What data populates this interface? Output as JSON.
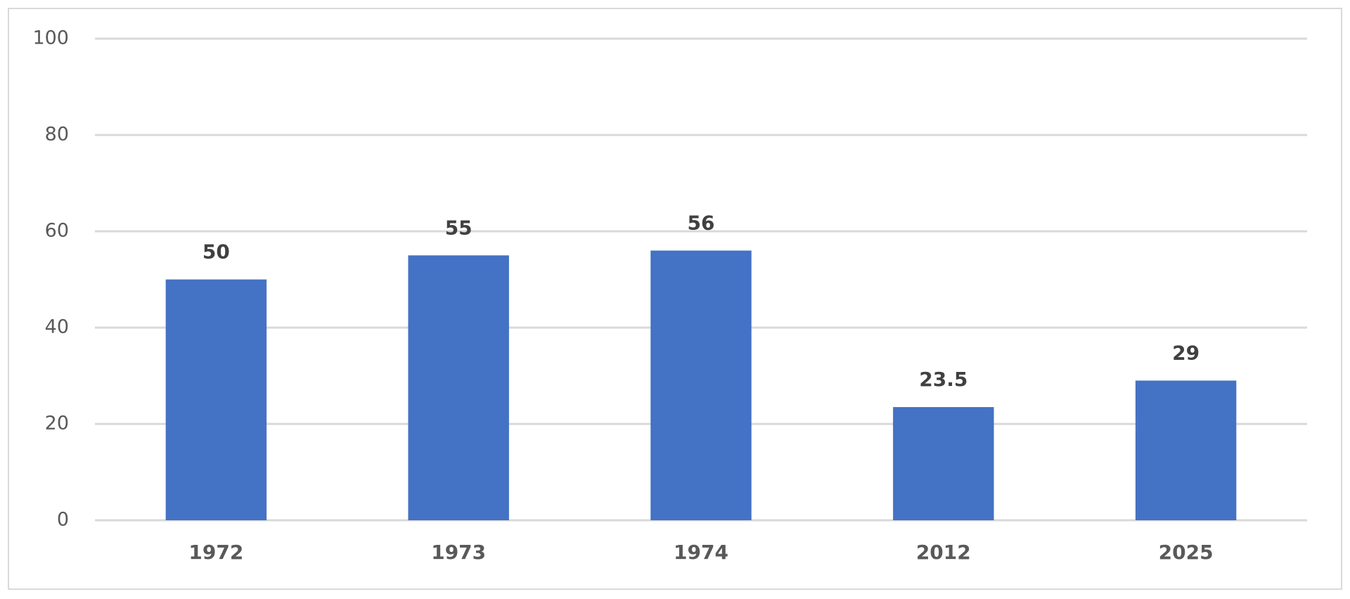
{
  "chart_data": {
    "type": "bar",
    "categories": [
      "1972",
      "1973",
      "1974",
      "2012",
      "2025"
    ],
    "values": [
      50,
      55,
      56,
      23.5,
      29
    ],
    "color": "#4472c4",
    "ylim": [
      0,
      100
    ],
    "yticks": [
      0,
      20,
      40,
      60,
      80,
      100
    ],
    "grid": true
  }
}
